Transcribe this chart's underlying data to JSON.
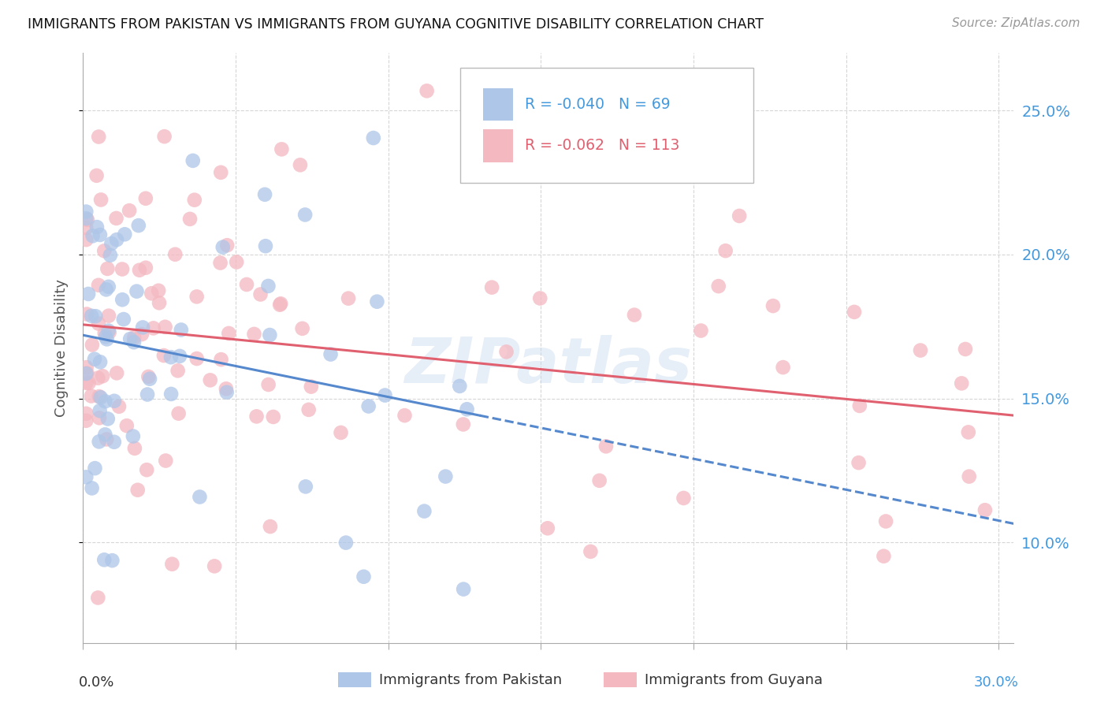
{
  "title": "IMMIGRANTS FROM PAKISTAN VS IMMIGRANTS FROM GUYANA COGNITIVE DISABILITY CORRELATION CHART",
  "source": "Source: ZipAtlas.com",
  "ylabel": "Cognitive Disability",
  "yticks": [
    "10.0%",
    "15.0%",
    "20.0%",
    "25.0%"
  ],
  "ytick_vals": [
    0.1,
    0.15,
    0.2,
    0.25
  ],
  "xlim": [
    0.0,
    0.305
  ],
  "ylim": [
    0.065,
    0.27
  ],
  "legend_R_pakistan": "-0.040",
  "legend_N_pakistan": "69",
  "legend_R_guyana": "-0.062",
  "legend_N_guyana": "113",
  "color_pakistan": "#aec6e8",
  "color_guyana": "#f4b8c1",
  "trendline_pakistan_color": "#5588cc",
  "trendline_guyana_color": "#e06070",
  "watermark": "ZIPatlas"
}
